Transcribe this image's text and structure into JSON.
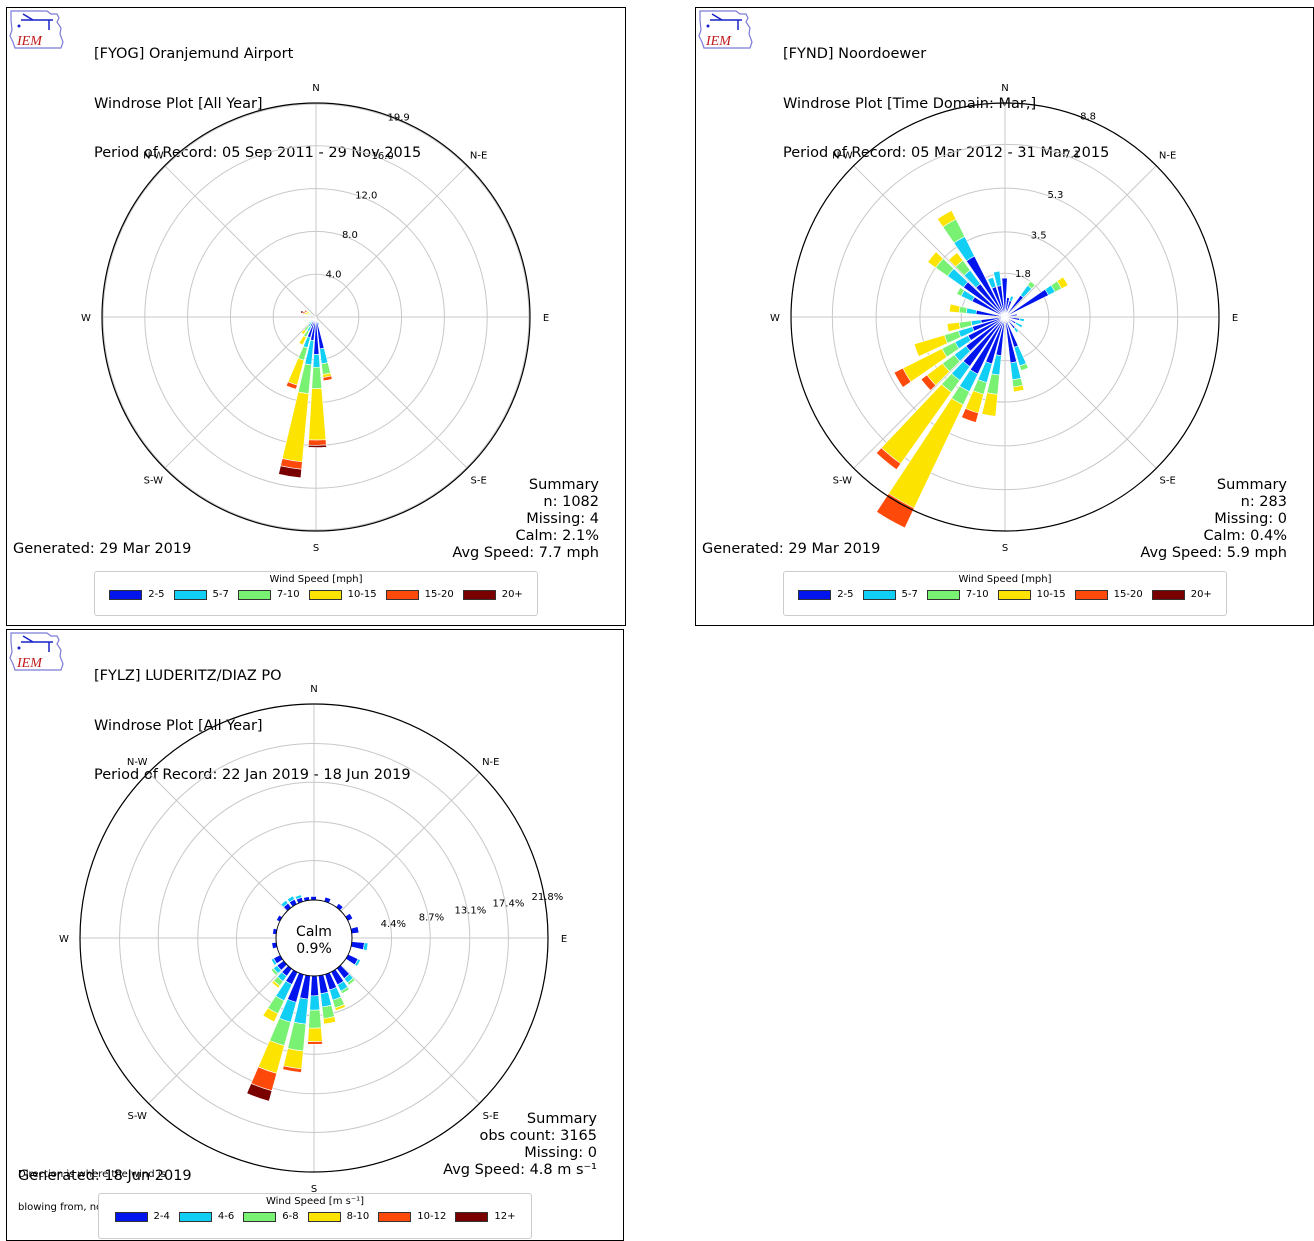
{
  "logo_text": "IEM",
  "chart_data": [
    {
      "type": "windrose",
      "title_lines": [
        "[FYOG] Oranjemund Airport",
        "Windrose Plot [All Year]",
        "Period of Record: 05 Sep 2011 - 29 Nov 2015"
      ],
      "directions": [
        "N",
        "N-E",
        "E",
        "S-E",
        "S",
        "S-W",
        "W",
        "N-W"
      ],
      "radial_ticks": [
        4.0,
        8.0,
        12.0,
        16.0,
        19.9
      ],
      "radial_tick_labels": [
        "4.0",
        "8.0",
        "12.0",
        "16.0",
        "19.9"
      ],
      "rmax": 20.0,
      "calm_circle": false,
      "tick_angle_deg": 22.5,
      "legend_title": "Wind Speed [mph]",
      "legend_labels": [
        "2-5",
        "5-7",
        "7-10",
        "10-15",
        "15-20",
        "20+"
      ],
      "colors": [
        "#0015ee",
        "#11cef5",
        "#79f172",
        "#fce400",
        "#fd4a0b",
        "#7a0000"
      ],
      "bars": [
        {
          "dir": 180,
          "values": [
            3.5,
            1.2,
            2.0,
            4.8,
            0.5,
            0.2
          ]
        },
        {
          "dir": 190,
          "values": [
            2.2,
            2.3,
            2.7,
            6.4,
            0.7,
            0.8
          ]
        },
        {
          "dir": 170,
          "values": [
            3.0,
            1.4,
            1.0,
            0.3,
            0.3,
            0
          ]
        },
        {
          "dir": 200,
          "values": [
            2.0,
            1.0,
            1.2,
            2.4,
            0.4,
            0
          ]
        },
        {
          "dir": 210,
          "values": [
            1.0,
            0.5,
            0.6,
            0.8,
            0,
            0
          ]
        },
        {
          "dir": 220,
          "values": [
            0.6,
            0.5,
            0.5,
            0.4,
            0,
            0
          ]
        },
        {
          "dir": 160,
          "values": [
            0.5,
            0.3,
            0,
            0,
            0,
            0
          ]
        },
        {
          "dir": 230,
          "values": [
            0.4,
            0.3,
            0.2,
            0,
            0,
            0
          ]
        },
        {
          "dir": 240,
          "values": [
            0.3,
            0.2,
            0,
            0,
            0,
            0
          ]
        },
        {
          "dir": 290,
          "values": [
            0.3,
            0.3,
            0.2,
            0.3,
            0.2,
            0.2
          ]
        },
        {
          "dir": 300,
          "values": [
            0.2,
            0.3,
            0.2,
            0.3,
            0.2,
            0
          ]
        }
      ],
      "summary_lines": [
        "Summary",
        "n: 1082",
        "Missing: 4",
        "Calm: 2.1%",
        "Avg Speed: 7.7 mph"
      ],
      "generated": "Generated: 29 Mar 2019",
      "note_lines": []
    },
    {
      "type": "windrose",
      "title_lines": [
        "[FYND] Noordoewer",
        "Windrose Plot [Time Domain: Mar,]",
        "Period of Record: 05 Mar 2012 - 31 Mar 2015"
      ],
      "directions": [
        "N",
        "N-E",
        "E",
        "S-E",
        "S",
        "S-W",
        "W",
        "N-W"
      ],
      "radial_ticks": [
        1.8,
        3.5,
        5.3,
        7.1,
        8.8
      ],
      "radial_tick_labels": [
        "1.8",
        "3.5",
        "5.3",
        "7.1",
        "8.8"
      ],
      "rmax": 8.8,
      "calm_circle": false,
      "tick_angle_deg": 22.5,
      "legend_title": "Wind Speed [mph]",
      "legend_labels": [
        "2-5",
        "5-7",
        "7-10",
        "10-15",
        "15-20",
        "20+"
      ],
      "colors": [
        "#0015ee",
        "#11cef5",
        "#79f172",
        "#fce400",
        "#fd4a0b",
        "#7a0000"
      ],
      "bars": [
        {
          "dir": 0,
          "values": [
            1.6
          ]
        },
        {
          "dir": 10,
          "values": [
            0.8
          ]
        },
        {
          "dir": 20,
          "values": [
            0.7,
            0.2
          ]
        },
        {
          "dir": 40,
          "values": [
            1.1,
            0.5,
            0.2
          ]
        },
        {
          "dir": 60,
          "values": [
            2.0,
            0.3,
            0.3,
            0.3
          ]
        },
        {
          "dir": 80,
          "values": [
            0.5
          ]
        },
        {
          "dir": 100,
          "values": [
            0.6,
            0.2
          ]
        },
        {
          "dir": 120,
          "values": [
            0.5,
            0.3
          ]
        },
        {
          "dir": 140,
          "values": [
            0.6,
            0.2
          ]
        },
        {
          "dir": 160,
          "values": [
            1.3,
            0.8,
            0.2
          ]
        },
        {
          "dir": 170,
          "values": [
            1.9,
            0.7,
            0.3,
            0.2
          ]
        },
        {
          "dir": 190,
          "values": [
            1.6,
            0.8,
            0.8,
            0.9
          ]
        },
        {
          "dir": 200,
          "values": [
            2.0,
            0.8,
            0.5,
            0.8,
            0.4
          ]
        },
        {
          "dir": 210,
          "values": [
            2.6,
            0.8,
            0.6,
            4.7,
            0.9
          ]
        },
        {
          "dir": 220,
          "values": [
            2.5,
            0.7,
            0.6,
            3.6,
            0.3
          ]
        },
        {
          "dir": 230,
          "values": [
            2.0,
            0.6,
            0.6,
            0.8,
            0.3
          ]
        },
        {
          "dir": 240,
          "values": [
            1.7,
            0.6,
            0.6,
            1.8,
            0.4
          ]
        },
        {
          "dir": 250,
          "values": [
            1.4,
            0.6,
            0.6,
            1.3
          ]
        },
        {
          "dir": 260,
          "values": [
            1.0,
            0.4,
            0.5,
            0.5
          ]
        },
        {
          "dir": 280,
          "values": [
            1.2,
            0.4,
            0.3,
            0.4
          ]
        },
        {
          "dir": 300,
          "values": [
            1.5,
            0.5,
            0.2
          ]
        },
        {
          "dir": 310,
          "values": [
            2.1,
            0.8,
            0.6,
            0.4
          ]
        },
        {
          "dir": 320,
          "values": [
            1.7,
            0.7,
            0.5,
            0.4
          ]
        },
        {
          "dir": 330,
          "values": [
            2.8,
            0.9,
            0.8,
            0.4
          ]
        },
        {
          "dir": 340,
          "values": [
            1.3,
            0.4
          ]
        },
        {
          "dir": 350,
          "values": [
            1.3,
            0.6
          ]
        }
      ],
      "summary_lines": [
        "Summary",
        "n: 283",
        "Missing: 0",
        "Calm: 0.4%",
        "Avg Speed: 5.9 mph"
      ],
      "generated": "Generated: 29 Mar 2019",
      "note_lines": []
    },
    {
      "type": "windrose",
      "title_lines": [
        "[FYLZ] LUDERITZ/DIAZ PO",
        "Windrose Plot [All Year]",
        "Period of Record: 22 Jan 2019 - 18 Jun 2019"
      ],
      "directions": [
        "N",
        "N-E",
        "E",
        "S-E",
        "S",
        "S-W",
        "W",
        "N-W"
      ],
      "radial_ticks": [
        4.4,
        8.7,
        13.1,
        17.4,
        21.8
      ],
      "radial_tick_labels": [
        "4.4%",
        "8.7%",
        "13.1%",
        "17.4%",
        "21.8%"
      ],
      "rmax": 21.8,
      "calm_circle": true,
      "calm_label": "Calm",
      "calm_value": "0.9%",
      "tick_angle_deg": 80,
      "legend_title": "Wind Speed [m s⁻¹]",
      "legend_labels": [
        "2-4",
        "4-6",
        "6-8",
        "8-10",
        "10-12",
        "12+"
      ],
      "colors": [
        "#0015ee",
        "#11cef5",
        "#79f172",
        "#fce400",
        "#fd4a0b",
        "#7a0000"
      ],
      "bars": [
        {
          "dir": 0,
          "values": [
            0.4
          ]
        },
        {
          "dir": 20,
          "values": [
            0.5
          ]
        },
        {
          "dir": 40,
          "values": [
            0.5
          ]
        },
        {
          "dir": 60,
          "values": [
            0.6
          ]
        },
        {
          "dir": 80,
          "values": [
            0.8
          ]
        },
        {
          "dir": 100,
          "values": [
            1.4,
            0.4
          ]
        },
        {
          "dir": 120,
          "values": [
            1.2,
            0.3
          ]
        },
        {
          "dir": 140,
          "values": [
            1.4,
            0.6,
            0.3
          ]
        },
        {
          "dir": 150,
          "values": [
            1.6,
            0.8,
            0.3
          ]
        },
        {
          "dir": 160,
          "values": [
            1.8,
            1.2,
            0.9,
            0.3
          ]
        },
        {
          "dir": 170,
          "values": [
            2.0,
            1.5,
            1.3,
            0.6
          ]
        },
        {
          "dir": 180,
          "values": [
            2.2,
            1.6,
            2.0,
            1.5,
            0.3
          ]
        },
        {
          "dir": 190,
          "values": [
            2.6,
            2.8,
            3.0,
            2.0,
            0.4
          ]
        },
        {
          "dir": 200,
          "values": [
            3.2,
            2.3,
            2.7,
            3.2,
            2.0,
            1.2
          ]
        },
        {
          "dir": 210,
          "values": [
            1.5,
            2.0,
            1.6,
            1.0,
            0
          ]
        },
        {
          "dir": 220,
          "values": [
            1.0,
            0.7,
            0.6,
            0.3
          ]
        },
        {
          "dir": 230,
          "values": [
            0.9,
            0.5,
            0.3
          ]
        },
        {
          "dir": 240,
          "values": [
            0.8,
            0.3
          ]
        },
        {
          "dir": 260,
          "values": [
            0.5
          ]
        },
        {
          "dir": 280,
          "values": [
            0.4
          ]
        },
        {
          "dir": 300,
          "values": [
            0.4
          ]
        },
        {
          "dir": 320,
          "values": [
            0.6,
            0.4
          ]
        },
        {
          "dir": 330,
          "values": [
            0.6,
            0.4
          ]
        },
        {
          "dir": 340,
          "values": [
            0.5,
            0.3
          ]
        },
        {
          "dir": 350,
          "values": [
            0.4
          ]
        }
      ],
      "summary_lines": [
        "Summary",
        "obs count: 3165",
        "Missing: 0",
        "Avg Speed: 4.8 m s⁻¹"
      ],
      "generated": "Generated: 18 Jun 2019",
      "note_lines": [
        "Direction is where the wind is",
        "blowing from, not toward."
      ]
    }
  ]
}
